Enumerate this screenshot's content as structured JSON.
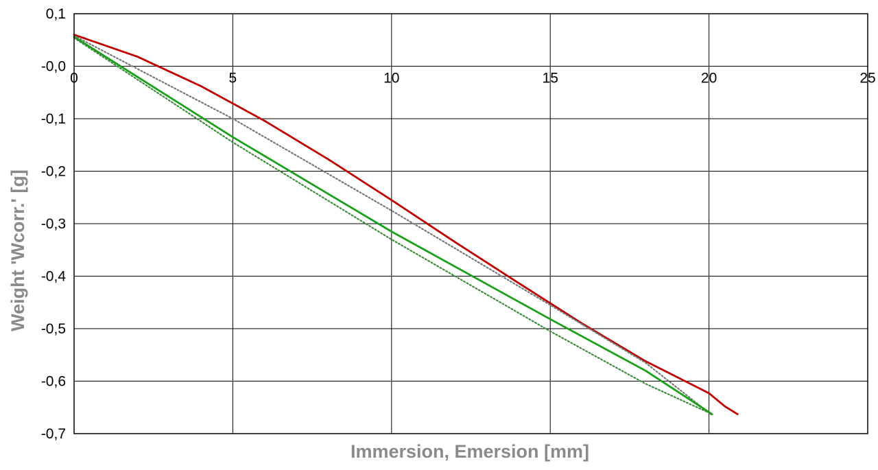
{
  "chart_data": {
    "type": "line",
    "title": "",
    "xlabel": "Immersion, Emersion [mm]",
    "ylabel": "Weight 'Wcorr.' [g]",
    "xlim": [
      0,
      25
    ],
    "ylim": [
      -0.7,
      0.1
    ],
    "x_ticks": [
      0,
      5,
      10,
      15,
      20,
      25
    ],
    "y_ticks": [
      0.1,
      0.0,
      -0.1,
      -0.2,
      -0.3,
      -0.4,
      -0.5,
      -0.6,
      -0.7
    ],
    "x_tick_labels": [
      "0",
      "5",
      "10",
      "15",
      "20",
      "25"
    ],
    "y_tick_labels": [
      "0,1",
      "-0,0",
      "-0,1",
      "-0,2",
      "-0,3",
      "-0,4",
      "-0,5",
      "-0,6",
      "-0,7"
    ],
    "grid": true,
    "legend": "none",
    "series": [
      {
        "color": "#c00000",
        "style": "solid",
        "x": [
          0,
          2,
          4,
          6,
          8,
          10,
          12,
          14,
          16,
          18,
          20,
          20.5,
          20.9
        ],
        "y": [
          0.06,
          0.018,
          -0.038,
          -0.104,
          -0.177,
          -0.255,
          -0.335,
          -0.413,
          -0.49,
          -0.562,
          -0.623,
          -0.648,
          -0.663
        ]
      },
      {
        "color": "#777777",
        "style": "dotted",
        "x": [
          0,
          5,
          10,
          15,
          18,
          20.1
        ],
        "y": [
          0.058,
          -0.1,
          -0.275,
          -0.455,
          -0.565,
          -0.665
        ]
      },
      {
        "color": "#1aa01a",
        "style": "solid",
        "x": [
          0,
          5,
          10,
          15,
          18,
          20.1
        ],
        "y": [
          0.056,
          -0.135,
          -0.315,
          -0.482,
          -0.58,
          -0.663
        ]
      },
      {
        "color": "#3c8c3c",
        "style": "dotted",
        "x": [
          0,
          5,
          10,
          15,
          18,
          20.1
        ],
        "y": [
          0.054,
          -0.145,
          -0.33,
          -0.505,
          -0.605,
          -0.663
        ]
      }
    ]
  }
}
